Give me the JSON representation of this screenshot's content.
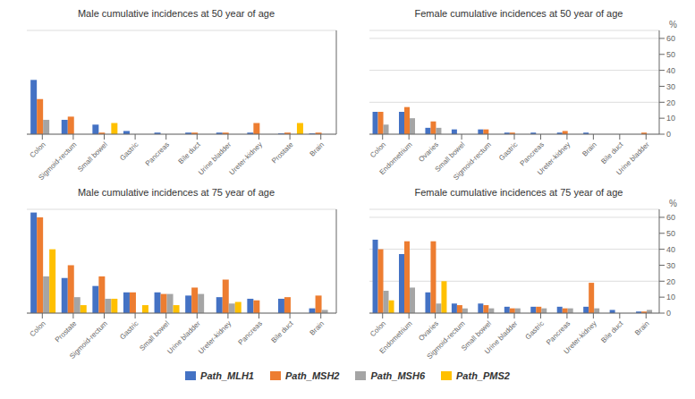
{
  "chart_data": [
    {
      "type": "bar",
      "title": "Male cumulative incidences at 50 year of age",
      "categories": [
        "Colon",
        "Sigmoid-rectum",
        "Small bowel",
        "Gastric",
        "Pancreas",
        "Bile duct",
        "Urine bladder",
        "Ureter-kidney",
        "Prostate",
        "Brain"
      ],
      "series": [
        {
          "name": "Path_MLH1",
          "color": "#4472C4",
          "values": [
            34,
            9,
            6,
            2,
            1,
            1,
            1,
            1,
            0.5,
            0.5
          ]
        },
        {
          "name": "Path_MSH2",
          "color": "#ED7D31",
          "values": [
            22,
            11,
            1,
            0,
            0,
            1,
            1,
            7,
            1,
            1
          ]
        },
        {
          "name": "Path_MSH6",
          "color": "#A5A5A5",
          "values": [
            9,
            0,
            0,
            0,
            0,
            0,
            0,
            0,
            0,
            0
          ]
        },
        {
          "name": "Path_PMS2",
          "color": "#FFC000",
          "values": [
            0,
            0,
            7,
            0,
            0,
            0,
            0,
            0,
            7,
            0
          ]
        }
      ],
      "ylim": [
        0,
        65
      ],
      "yticks": [
        0,
        10,
        20,
        30,
        40,
        50,
        60
      ],
      "grid": true,
      "tick_labels": "x"
    },
    {
      "type": "bar",
      "title": "Female cumulative incidences at 50 year of age",
      "categories": [
        "Colon",
        "Endometrium",
        "Ovaries",
        "Small bowel",
        "Sigmoid-rectum",
        "Gastric",
        "Pancreas",
        "Ureter-kidney",
        "Brain",
        "Bile duct",
        "Urine bladder"
      ],
      "series": [
        {
          "name": "Path_MLH1",
          "color": "#4472C4",
          "values": [
            14,
            14,
            4,
            3,
            3,
            1,
            1,
            1,
            1,
            0,
            0
          ]
        },
        {
          "name": "Path_MSH2",
          "color": "#ED7D31",
          "values": [
            14,
            17,
            8,
            0,
            3,
            1,
            0,
            2,
            0,
            0,
            1
          ]
        },
        {
          "name": "Path_MSH6",
          "color": "#A5A5A5",
          "values": [
            6,
            10,
            4,
            0,
            0,
            0,
            0,
            0,
            0,
            0,
            0
          ]
        },
        {
          "name": "Path_PMS2",
          "color": "#FFC000",
          "values": [
            0,
            0,
            0,
            0,
            0,
            0,
            0,
            0,
            0,
            0,
            0
          ]
        }
      ],
      "ylim": [
        0,
        65
      ],
      "yticks": [
        0,
        10,
        20,
        30,
        40,
        50,
        60
      ],
      "grid": true,
      "y_label": "%"
    },
    {
      "type": "bar",
      "title": "Male cumulative incidences at 75 year of age",
      "categories": [
        "Colon",
        "Prostate",
        "Sigmoid-rectum",
        "Gastric",
        "Small bowel",
        "Urine bladder",
        "Ureter-kidney",
        "Pancreas",
        "Bile duct",
        "Brain"
      ],
      "series": [
        {
          "name": "Path_MLH1",
          "color": "#4472C4",
          "values": [
            63,
            22,
            17,
            13,
            13,
            11,
            10,
            9,
            9,
            3
          ]
        },
        {
          "name": "Path_MSH2",
          "color": "#ED7D31",
          "values": [
            60,
            30,
            23,
            13,
            12,
            16,
            21,
            8,
            10,
            11
          ]
        },
        {
          "name": "Path_MSH6",
          "color": "#A5A5A5",
          "values": [
            23,
            10,
            9,
            0,
            12,
            12,
            6,
            0,
            0,
            2
          ]
        },
        {
          "name": "Path_PMS2",
          "color": "#FFC000",
          "values": [
            40,
            5,
            9,
            5,
            5,
            0,
            7,
            0,
            0,
            0
          ]
        }
      ],
      "ylim": [
        0,
        65
      ],
      "yticks": [
        0,
        10,
        20,
        30,
        40,
        50,
        60
      ],
      "grid": true,
      "tick_labels": "x"
    },
    {
      "type": "bar",
      "title": "Female cumulative incidences at 75 year of age",
      "categories": [
        "Colon",
        "Endometrium",
        "Ovaries",
        "Sigmoid-rectum",
        "Small bowel",
        "Urine bladder",
        "Gastric",
        "Pancreas",
        "Ureter-kidney",
        "Bile duct",
        "Brain"
      ],
      "series": [
        {
          "name": "Path_MLH1",
          "color": "#4472C4",
          "values": [
            46,
            37,
            13,
            6,
            6,
            4,
            4,
            4,
            4,
            2,
            1
          ]
        },
        {
          "name": "Path_MSH2",
          "color": "#ED7D31",
          "values": [
            40,
            45,
            45,
            5,
            5,
            3,
            4,
            3,
            19,
            0,
            1
          ]
        },
        {
          "name": "Path_MSH6",
          "color": "#A5A5A5",
          "values": [
            14,
            16,
            6,
            3,
            3,
            3,
            3,
            3,
            3,
            0,
            2
          ]
        },
        {
          "name": "Path_PMS2",
          "color": "#FFC000",
          "values": [
            8,
            0,
            20,
            0,
            0,
            0,
            0,
            0,
            0,
            0,
            0
          ]
        }
      ],
      "ylim": [
        0,
        65
      ],
      "yticks": [
        0,
        10,
        20,
        30,
        40,
        50,
        60
      ],
      "grid": true,
      "y_label": "%"
    }
  ]
}
